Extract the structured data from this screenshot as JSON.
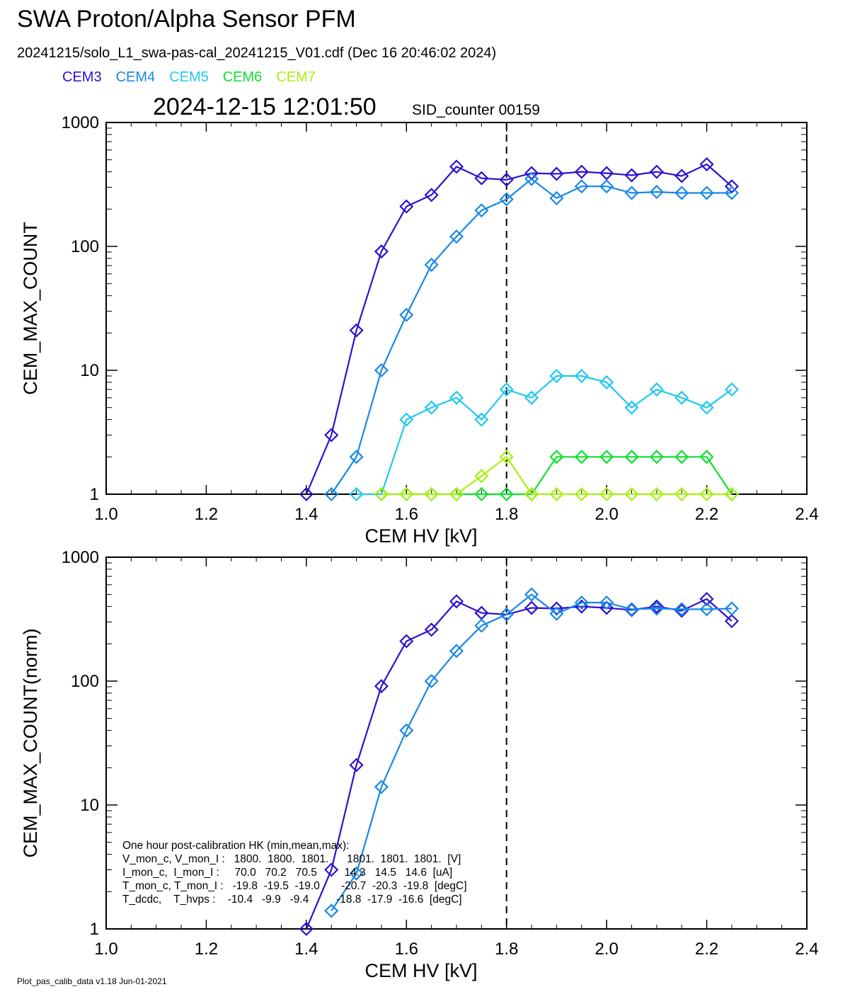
{
  "header": {
    "title": "SWA Proton/Alpha Sensor PFM",
    "file_line": "20241215/solo_L1_swa-pas-cal_20241215_V01.cdf  (Dec 16 20:46:02 2024)",
    "timestamp": "2024-12-15 12:01:50",
    "sid_label": "SID_counter 00159"
  },
  "legend": [
    {
      "label": "CEM3",
      "color": "#3010d0"
    },
    {
      "label": "CEM4",
      "color": "#1888e8"
    },
    {
      "label": "CEM5",
      "color": "#20c8f0"
    },
    {
      "label": "CEM6",
      "color": "#10e030"
    },
    {
      "label": "CEM7",
      "color": "#a8f010"
    }
  ],
  "footer": "Plot_pas_calib_data v1.18 Jun-01-2021",
  "hk_table": {
    "lines": [
      "One hour post-calibration HK (min,mean,max):",
      "V_mon_c, V_mon_I :   1800.  1800.  1801.      1801.  1801.  1801.  [V]",
      "I_mon_c,  I_mon_I :     70.0   70.2   70.5         14.3   14.5   14.6  [uA]",
      "T_mon_c, T_mon_I :   -19.8  -19.5  -19.0       -20.7  -20.3  -19.8  [degC]",
      "T_dcdc,    T_hvps :    -10.4   -9.9   -9.4         -18.8  -17.9  -16.6  [degC]"
    ]
  },
  "chart_data": [
    {
      "type": "line",
      "xlabel": "CEM HV [kV]",
      "ylabel": "CEM_MAX_COUNT",
      "xlim": [
        1.0,
        2.4
      ],
      "ylim": [
        1,
        1000
      ],
      "yscale": "log",
      "xticks": [
        "1.0",
        "1.2",
        "1.4",
        "1.6",
        "1.8",
        "2.0",
        "2.2",
        "2.4"
      ],
      "yticks": [
        "1",
        "10",
        "100",
        "1000"
      ],
      "vline": 1.8,
      "marker": "diamond",
      "series": [
        {
          "name": "CEM3",
          "color": "#3010d0",
          "x": [
            1.4,
            1.45,
            1.5,
            1.55,
            1.6,
            1.65,
            1.7,
            1.75,
            1.8,
            1.85,
            1.9,
            1.95,
            2.0,
            2.05,
            2.1,
            2.15,
            2.2,
            2.25
          ],
          "values": [
            1,
            3,
            21,
            91,
            210,
            260,
            440,
            355,
            345,
            390,
            385,
            400,
            390,
            375,
            400,
            370,
            460,
            305
          ]
        },
        {
          "name": "CEM4",
          "color": "#1888e8",
          "x": [
            1.45,
            1.5,
            1.55,
            1.6,
            1.65,
            1.7,
            1.75,
            1.8,
            1.85,
            1.9,
            1.95,
            2.0,
            2.05,
            2.1,
            2.15,
            2.2,
            2.25
          ],
          "values": [
            1,
            2,
            10,
            28,
            71,
            120,
            195,
            240,
            350,
            245,
            305,
            305,
            270,
            275,
            270,
            270,
            270
          ]
        },
        {
          "name": "CEM5",
          "color": "#20c8f0",
          "x": [
            1.5,
            1.55,
            1.6,
            1.65,
            1.7,
            1.75,
            1.8,
            1.85,
            1.9,
            1.95,
            2.0,
            2.05,
            2.1,
            2.15,
            2.2,
            2.25
          ],
          "values": [
            1,
            1,
            4,
            5,
            6,
            4,
            7,
            6,
            9,
            9,
            8,
            5,
            7,
            6,
            5,
            7
          ]
        },
        {
          "name": "CEM6",
          "color": "#10e030",
          "x": [
            1.55,
            1.6,
            1.65,
            1.7,
            1.75,
            1.8,
            1.85,
            1.9,
            1.95,
            2.0,
            2.05,
            2.1,
            2.15,
            2.2,
            2.25
          ],
          "values": [
            1,
            1,
            1,
            1,
            1,
            1,
            1,
            2,
            2,
            2,
            2,
            2,
            2,
            2,
            1
          ]
        },
        {
          "name": "CEM7",
          "color": "#a8f010",
          "x": [
            1.55,
            1.6,
            1.65,
            1.7,
            1.75,
            1.8,
            1.85,
            1.9,
            1.95,
            2.0,
            2.05,
            2.1,
            2.15,
            2.2,
            2.25
          ],
          "values": [
            1,
            1,
            1,
            1,
            1.4,
            2,
            1,
            1,
            1,
            1,
            1,
            1,
            1,
            1,
            1
          ]
        }
      ]
    },
    {
      "type": "line",
      "xlabel": "CEM HV [kV]",
      "ylabel": "CEM_MAX_COUNT(norm)",
      "xlim": [
        1.0,
        2.4
      ],
      "ylim": [
        1,
        1000
      ],
      "yscale": "log",
      "xticks": [
        "1.0",
        "1.2",
        "1.4",
        "1.6",
        "1.8",
        "2.0",
        "2.2",
        "2.4"
      ],
      "yticks": [
        "1",
        "10",
        "100",
        "1000"
      ],
      "vline": 1.8,
      "marker": "diamond",
      "series": [
        {
          "name": "CEM3",
          "color": "#3010d0",
          "x": [
            1.4,
            1.45,
            1.5,
            1.55,
            1.6,
            1.65,
            1.7,
            1.75,
            1.8,
            1.85,
            1.9,
            1.95,
            2.0,
            2.05,
            2.1,
            2.15,
            2.2,
            2.25
          ],
          "values": [
            1,
            3,
            21,
            91,
            210,
            260,
            440,
            355,
            345,
            390,
            385,
            400,
            390,
            375,
            400,
            370,
            460,
            305
          ]
        },
        {
          "name": "CEM4",
          "color": "#1888e8",
          "x": [
            1.45,
            1.5,
            1.55,
            1.6,
            1.65,
            1.7,
            1.75,
            1.8,
            1.85,
            1.9,
            1.95,
            2.0,
            2.05,
            2.1,
            2.15,
            2.2,
            2.25
          ],
          "values": [
            1.4,
            2.8,
            14,
            40,
            100,
            175,
            280,
            345,
            500,
            350,
            430,
            430,
            380,
            385,
            380,
            380,
            385
          ]
        }
      ]
    }
  ]
}
